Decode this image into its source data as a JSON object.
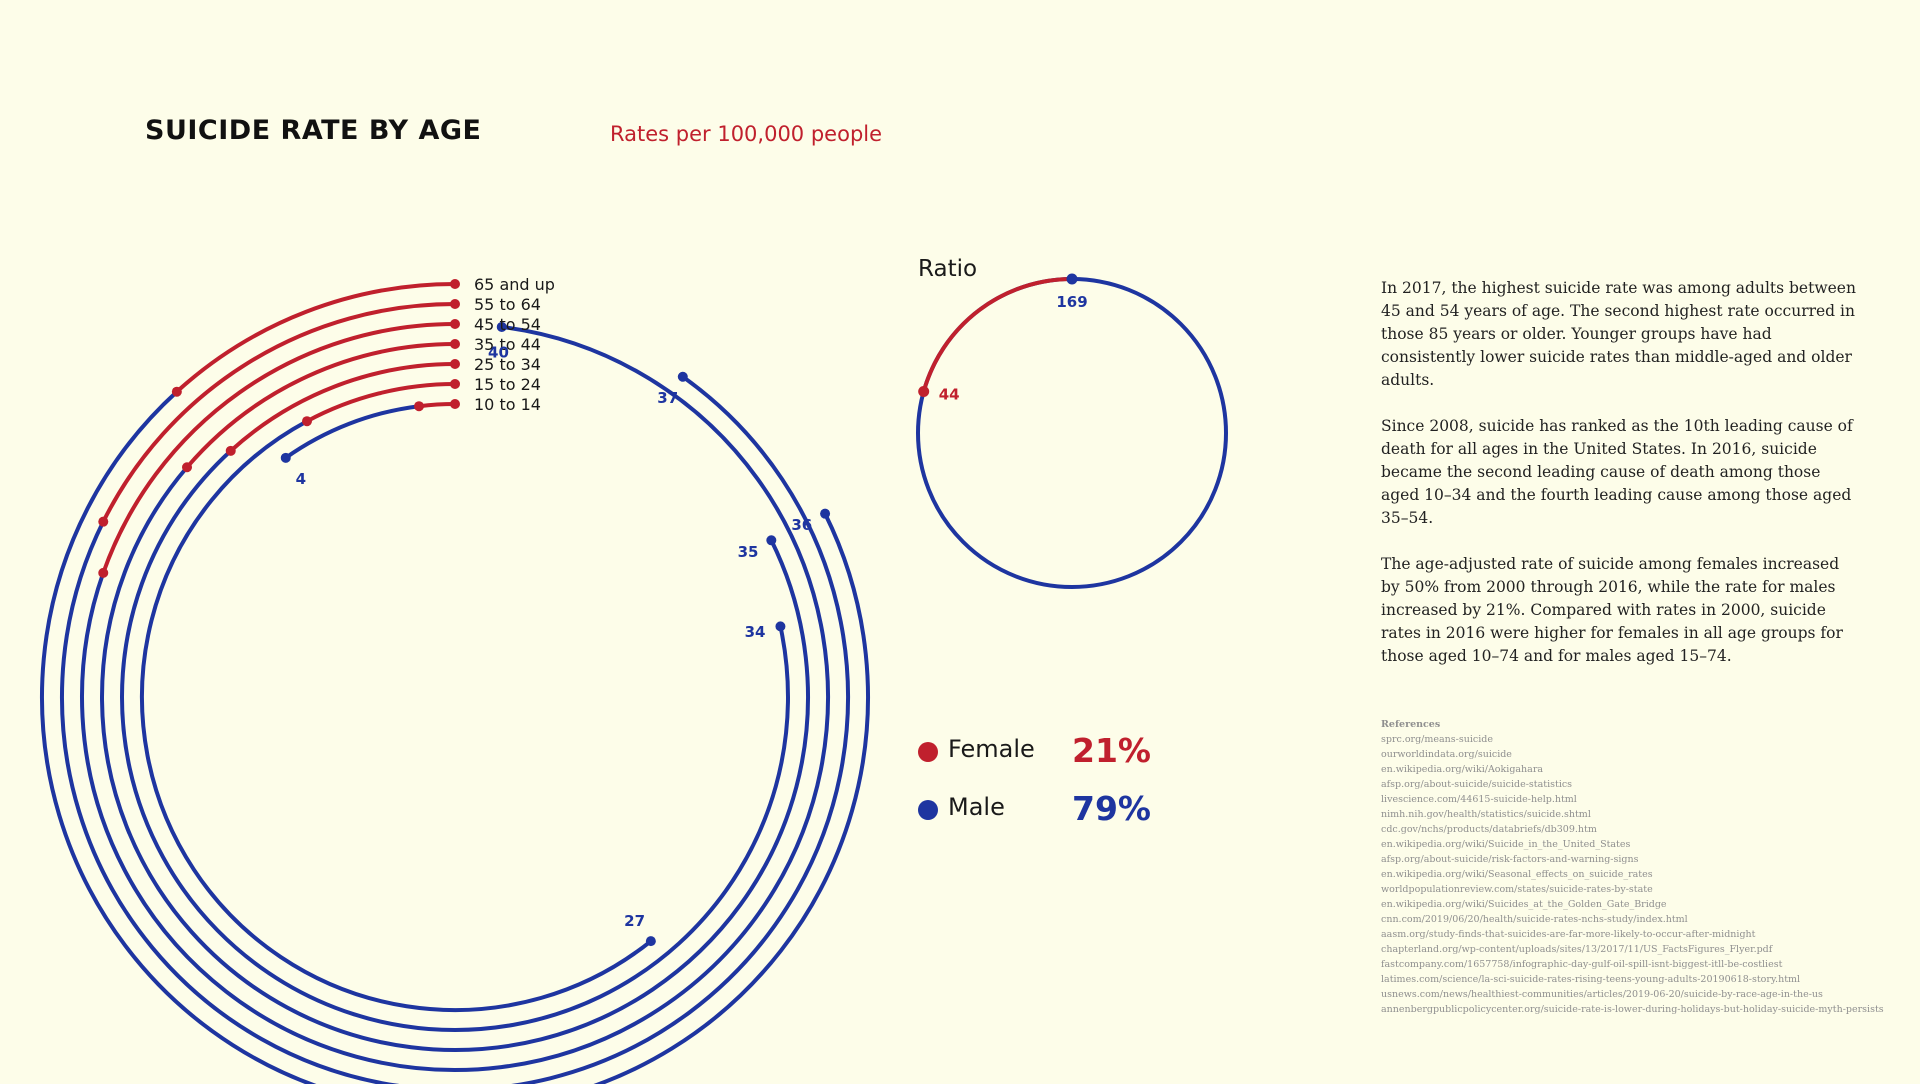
{
  "header": {
    "title": "SUICIDE RATE BY AGE",
    "subtitle": "Rates per 100,000 people"
  },
  "colors": {
    "female": "#c0202d",
    "male": "#1e35a0",
    "background": "#fdfde9"
  },
  "chart_data": [
    {
      "type": "radial-bar",
      "categories": [
        "10 to 14",
        "15 to 24",
        "25 to 34",
        "35 to 44",
        "45 to 54",
        "55 to 64",
        "65 and up"
      ],
      "series": [
        {
          "name": "Female",
          "values": [
            1,
            4,
            6,
            7,
            10,
            9,
            6
          ]
        },
        {
          "name": "Male",
          "values": [
            4,
            27,
            34,
            35,
            40,
            37,
            36
          ]
        }
      ],
      "value_labels": [
        "4",
        "27",
        "34",
        "35",
        "40",
        "37",
        "36"
      ],
      "max_value": 50
    },
    {
      "type": "pie",
      "title": "Ratio",
      "slices": [
        {
          "name": "Female",
          "value": 44,
          "label": "44"
        },
        {
          "name": "Male",
          "value": 169,
          "label": "169"
        }
      ]
    }
  ],
  "legend": [
    {
      "label": "Female",
      "percent": "21%"
    },
    {
      "label": "Male",
      "percent": "79%"
    }
  ],
  "paragraphs": [
    "In 2017, the highest suicide rate was among adults between 45 and 54 years of age. The second highest rate occurred in those 85 years or older. Younger groups have had consistently lower suicide rates than middle-aged and older adults.",
    "Since 2008, suicide has ranked as the 10th leading cause of death for all ages in the United States. In 2016, suicide became the second leading cause of death among those aged 10–34 and the fourth leading cause among those aged 35–54.",
    "The age-adjusted rate of suicide among females increased by 50% from 2000 through 2016, while the rate for males increased by 21%. Compared with rates in 2000, suicide rates in 2016 were higher for females in all age groups for those aged 10–74 and for males aged 15–74."
  ],
  "references": {
    "title": "References",
    "items": [
      "sprc.org/means-suicide",
      "ourworldindata.org/suicide",
      "en.wikipedia.org/wiki/Aokigahara",
      "afsp.org/about-suicide/suicide-statistics",
      "livescience.com/44615-suicide-help.html",
      "nimh.nih.gov/health/statistics/suicide.shtml",
      "cdc.gov/nchs/products/databriefs/db309.htm",
      "en.wikipedia.org/wiki/Suicide_in_the_United_States",
      "afsp.org/about-suicide/risk-factors-and-warning-signs",
      "en.wikipedia.org/wiki/Seasonal_effects_on_suicide_rates",
      "worldpopulationreview.com/states/suicide-rates-by-state",
      "en.wikipedia.org/wiki/Suicides_at_the_Golden_Gate_Bridge",
      "cnn.com/2019/06/20/health/suicide-rates-nchs-study/index.html",
      "aasm.org/study-finds-that-suicides-are-far-more-likely-to-occur-after-midnight",
      "chapterland.org/wp-content/uploads/sites/13/2017/11/US_FactsFigures_Flyer.pdf",
      "fastcompany.com/1657758/infographic-day-gulf-oil-spill-isnt-biggest-itll-be-costliest",
      "latimes.com/science/la-sci-suicide-rates-rising-teens-young-adults-20190618-story.html",
      "usnews.com/news/healthiest-communities/articles/2019-06-20/suicide-by-race-age-in-the-us",
      "annenbergpublicpolicycenter.org/suicide-rate-is-lower-during-holidays-but-holiday-suicide-myth-persists"
    ]
  }
}
